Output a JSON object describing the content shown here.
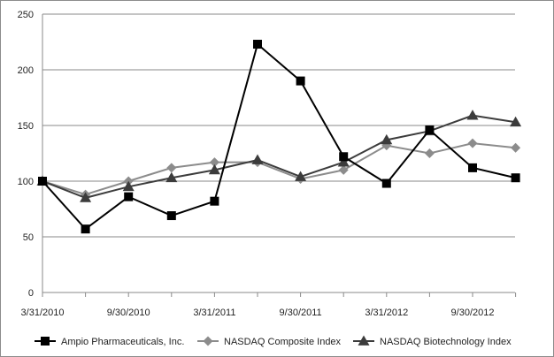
{
  "chart_data": {
    "type": "line",
    "title": "",
    "xlabel": "",
    "ylabel": "",
    "ylim": [
      0,
      250
    ],
    "yticks": [
      0,
      50,
      100,
      150,
      200,
      250
    ],
    "x": [
      "3/31/2010",
      "6/30/2010",
      "9/30/2010",
      "12/31/2010",
      "3/31/2011",
      "6/30/2011",
      "9/30/2011",
      "12/31/2011",
      "3/31/2012",
      "6/30/2012",
      "9/30/2012",
      "12/31/2012"
    ],
    "xtick_labels": [
      {
        "index": 0,
        "label": "3/31/2010"
      },
      {
        "index": 2,
        "label": "9/30/2010"
      },
      {
        "index": 4,
        "label": "3/31/2011"
      },
      {
        "index": 6,
        "label": "9/30/2011"
      },
      {
        "index": 8,
        "label": "3/31/2012"
      },
      {
        "index": 10,
        "label": "9/30/2012"
      }
    ],
    "grid": "horizontal",
    "legend_position": "bottom",
    "series": [
      {
        "name": "Ampio Pharmaceuticals, Inc.",
        "color": "#000000",
        "marker": "square",
        "values": [
          100,
          57,
          86,
          69,
          82,
          223,
          190,
          122,
          98,
          146,
          112,
          103
        ]
      },
      {
        "name": "NASDAQ Composite Index",
        "color": "#8c8c8c",
        "marker": "diamond",
        "values": [
          100,
          88,
          100,
          112,
          117,
          117,
          102,
          110,
          132,
          125,
          134,
          130
        ]
      },
      {
        "name": "NASDAQ Biotechnology Index",
        "color": "#3c3c3c",
        "marker": "triangle",
        "values": [
          100,
          85,
          95,
          103,
          110,
          119,
          104,
          117,
          137,
          145,
          159,
          153
        ]
      }
    ]
  }
}
